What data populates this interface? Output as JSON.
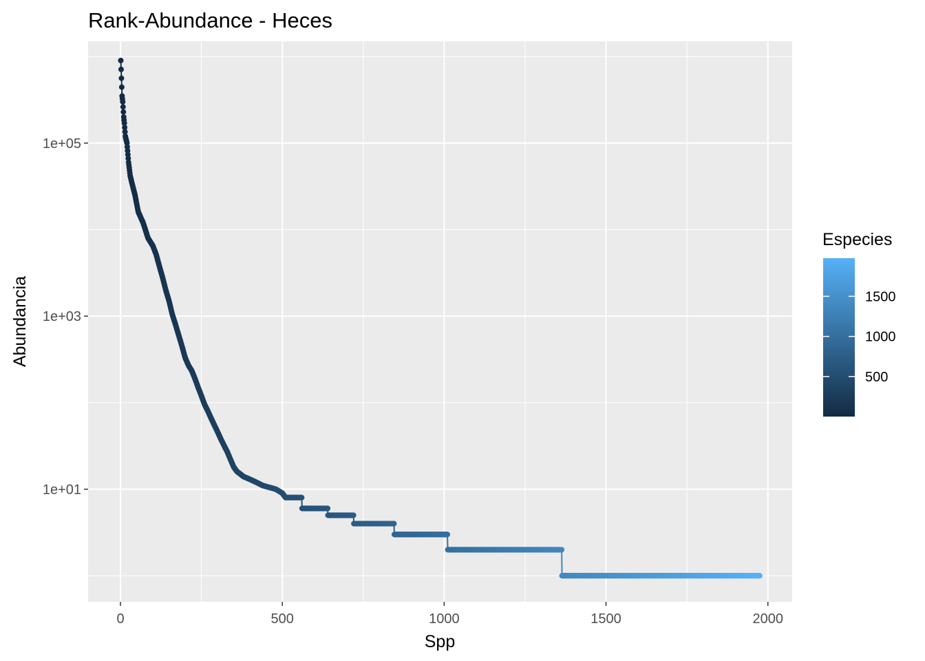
{
  "chart_data": {
    "type": "line",
    "title": "Rank-Abundance - Heces",
    "xlabel": "Spp",
    "ylabel": "Abundancia",
    "x_scale": "linear",
    "y_scale": "log10",
    "xlim": [
      -100,
      2075
    ],
    "ylim": [
      0.5,
      1500000
    ],
    "x_ticks": [
      0,
      500,
      1000,
      1500,
      2000
    ],
    "x_tick_labels": [
      "0",
      "500",
      "1000",
      "1500",
      "2000"
    ],
    "y_ticks": [
      10,
      1000,
      100000
    ],
    "y_tick_labels": [
      "1e+01",
      "1e+03",
      "1e+05"
    ],
    "y_minor_ticks": [
      1,
      100,
      10000,
      1000000
    ],
    "grid": true,
    "background": "#EBEBEB",
    "legend": {
      "title": "Especies",
      "placement": "right",
      "type": "colorbar",
      "range": [
        1,
        1975
      ],
      "breaks": [
        500,
        1000,
        1500
      ],
      "break_labels": [
        "500",
        "1000",
        "1500"
      ],
      "low_color": "#132B43",
      "high_color": "#56B1F7"
    },
    "series": [
      {
        "points": [
          [
            1,
            900000
          ],
          [
            5,
            350000
          ],
          [
            7,
            300000
          ],
          [
            10,
            200000
          ],
          [
            12,
            170000
          ],
          [
            15,
            120000
          ],
          [
            20,
            100000
          ],
          [
            25,
            60000
          ],
          [
            30,
            42000
          ],
          [
            35,
            35000
          ],
          [
            45,
            25000
          ],
          [
            55,
            16000
          ],
          [
            70,
            12000
          ],
          [
            85,
            8000
          ],
          [
            100,
            6500
          ],
          [
            110,
            5200
          ],
          [
            120,
            3800
          ],
          [
            130,
            2800
          ],
          [
            140,
            2000
          ],
          [
            150,
            1500
          ],
          [
            160,
            1050
          ],
          [
            170,
            800
          ],
          [
            180,
            600
          ],
          [
            190,
            450
          ],
          [
            200,
            330
          ],
          [
            210,
            270
          ],
          [
            220,
            235
          ],
          [
            230,
            190
          ],
          [
            240,
            150
          ],
          [
            250,
            120
          ],
          [
            260,
            95
          ],
          [
            270,
            80
          ],
          [
            280,
            66
          ],
          [
            290,
            55
          ],
          [
            300,
            46
          ],
          [
            310,
            38
          ],
          [
            320,
            32
          ],
          [
            330,
            27
          ],
          [
            340,
            22
          ],
          [
            350,
            18
          ],
          [
            360,
            16
          ],
          [
            370,
            15
          ],
          [
            380,
            14
          ],
          [
            400,
            13
          ],
          [
            420,
            12
          ],
          [
            440,
            11
          ],
          [
            460,
            10.5
          ],
          [
            480,
            10
          ],
          [
            500,
            9
          ],
          [
            510,
            8
          ],
          [
            560,
            8
          ],
          [
            561,
            6
          ],
          [
            640,
            6
          ],
          [
            641,
            5
          ],
          [
            720,
            5
          ],
          [
            721,
            4
          ],
          [
            845,
            4
          ],
          [
            846,
            3
          ],
          [
            1010,
            3
          ],
          [
            1011,
            2
          ],
          [
            1363,
            2
          ],
          [
            1364,
            1
          ],
          [
            1975,
            1
          ]
        ]
      }
    ]
  }
}
